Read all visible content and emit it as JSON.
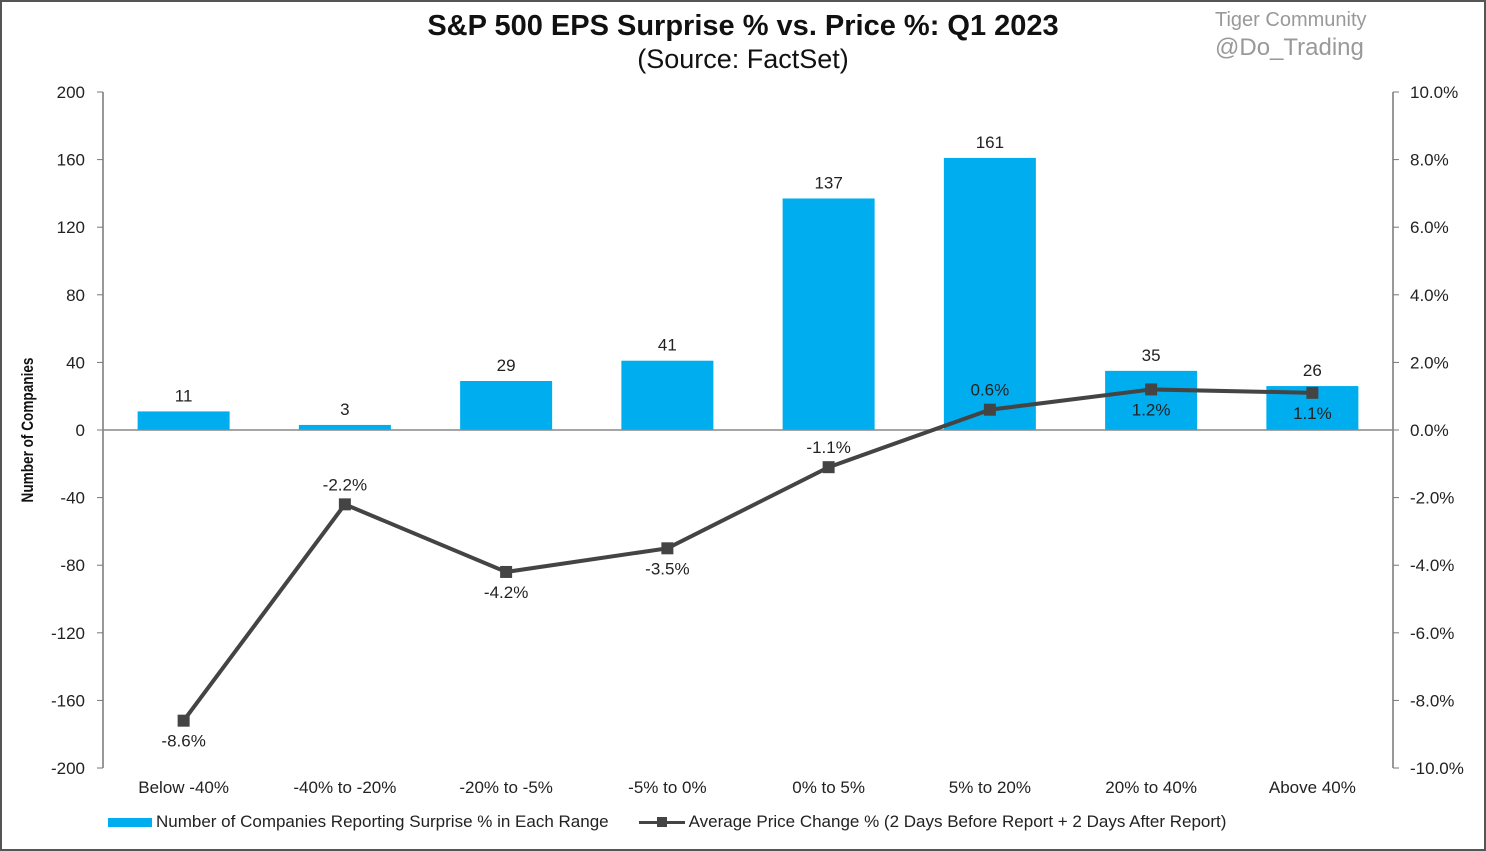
{
  "chart_data": {
    "type": "bar+line",
    "title": "S&P 500 EPS Surprise % vs. Price %: Q1 2023",
    "subtitle": "(Source: FactSet)",
    "ylabel": "Number of Companies",
    "ylim": [
      -200,
      200
    ],
    "yticks": [
      200,
      160,
      120,
      80,
      40,
      0,
      -40,
      -80,
      -120,
      -160,
      -200
    ],
    "y2lim": [
      -10,
      10
    ],
    "y2ticks": [
      "10.0%",
      "8.0%",
      "6.0%",
      "4.0%",
      "2.0%",
      "0.0%",
      "-2.0%",
      "-4.0%",
      "-6.0%",
      "-8.0%",
      "-10.0%"
    ],
    "categories": [
      "Below -40%",
      "-40% to -20%",
      "-20% to -5%",
      "-5% to 0%",
      "0% to 5%",
      "5% to 20%",
      "20% to 40%",
      "Above 40%"
    ],
    "series": [
      {
        "name": "Number of Companies Reporting Surprise % in Each Range",
        "type": "bar",
        "axis": "left",
        "color": "#00aeef",
        "values": [
          11,
          3,
          29,
          41,
          137,
          161,
          35,
          26
        ]
      },
      {
        "name": "Average Price Change % (2 Days Before Report + 2 Days After Report)",
        "type": "line",
        "axis": "right",
        "color": "#444444",
        "values": [
          -8.6,
          -2.2,
          -4.2,
          -3.5,
          -1.1,
          0.6,
          1.2,
          1.1
        ]
      }
    ],
    "grid": false,
    "legend": "bottom"
  },
  "watermark": {
    "line1": "Tiger Community",
    "line2": "@Do_Trading"
  }
}
